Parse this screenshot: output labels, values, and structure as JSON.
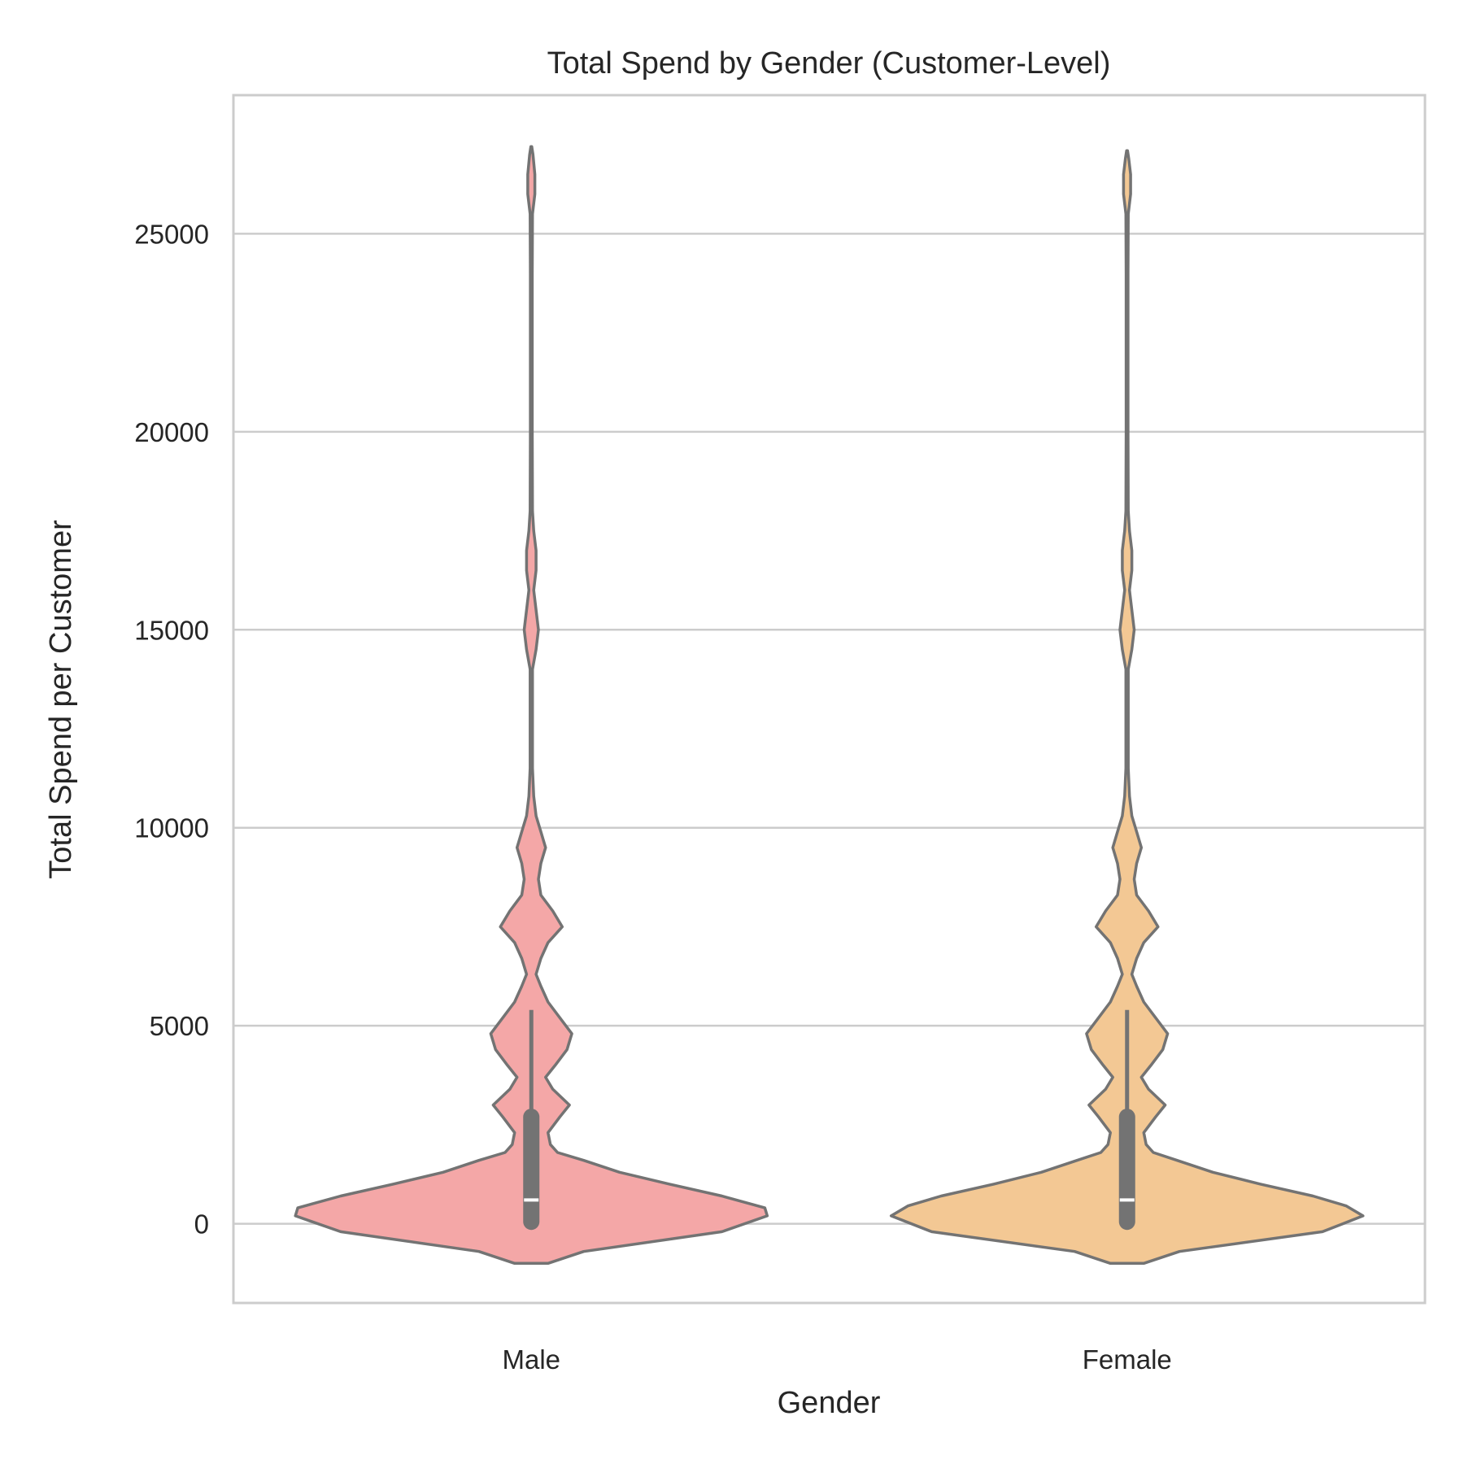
{
  "chart_data": {
    "type": "violin",
    "title": "Total Spend by Gender (Customer-Level)",
    "xlabel": "Gender",
    "ylabel": "Total Spend per Customer",
    "ylim": [
      -2000,
      28500
    ],
    "yticks": [
      0,
      5000,
      10000,
      15000,
      20000,
      25000
    ],
    "grid": true,
    "categories": [
      "Male",
      "Female"
    ],
    "series": [
      {
        "category": "Male",
        "color": "#f4a7a7",
        "edge_color": "#737373",
        "box": {
          "q1": 50,
          "median": 600,
          "q3": 2700,
          "whisker_low": 50,
          "whisker_high": 5400
        },
        "density": [
          [
            -1000,
            0.07
          ],
          [
            -700,
            0.22
          ],
          [
            -200,
            0.8
          ],
          [
            200,
            0.99
          ],
          [
            400,
            0.98
          ],
          [
            700,
            0.8
          ],
          [
            1000,
            0.58
          ],
          [
            1300,
            0.37
          ],
          [
            1600,
            0.22
          ],
          [
            1800,
            0.11
          ],
          [
            2000,
            0.08
          ],
          [
            2300,
            0.07
          ],
          [
            2700,
            0.12
          ],
          [
            3000,
            0.16
          ],
          [
            3400,
            0.09
          ],
          [
            3700,
            0.06
          ],
          [
            4000,
            0.1
          ],
          [
            4400,
            0.15
          ],
          [
            4800,
            0.17
          ],
          [
            5200,
            0.12
          ],
          [
            5600,
            0.07
          ],
          [
            6000,
            0.04
          ],
          [
            6300,
            0.02
          ],
          [
            6700,
            0.04
          ],
          [
            7100,
            0.07
          ],
          [
            7500,
            0.13
          ],
          [
            7900,
            0.09
          ],
          [
            8300,
            0.04
          ],
          [
            8700,
            0.03
          ],
          [
            9100,
            0.04
          ],
          [
            9500,
            0.06
          ],
          [
            9900,
            0.04
          ],
          [
            10300,
            0.02
          ],
          [
            10800,
            0.01
          ],
          [
            11500,
            0.005
          ],
          [
            13000,
            0.005
          ],
          [
            14000,
            0.005
          ],
          [
            14500,
            0.02
          ],
          [
            15000,
            0.03
          ],
          [
            15500,
            0.02
          ],
          [
            16000,
            0.01
          ],
          [
            16500,
            0.02
          ],
          [
            17000,
            0.02
          ],
          [
            17500,
            0.01
          ],
          [
            18000,
            0.005
          ],
          [
            20000,
            0.004
          ],
          [
            24000,
            0.004
          ],
          [
            25500,
            0.005
          ],
          [
            26000,
            0.015
          ],
          [
            26500,
            0.015
          ],
          [
            27000,
            0.007
          ],
          [
            27200,
            0.002
          ]
        ]
      },
      {
        "category": "Female",
        "color": "#f3c894",
        "edge_color": "#737373",
        "box": {
          "q1": 50,
          "median": 600,
          "q3": 2700,
          "whisker_low": 50,
          "whisker_high": 5400
        },
        "density": [
          [
            -1000,
            0.07
          ],
          [
            -700,
            0.22
          ],
          [
            -200,
            0.82
          ],
          [
            200,
            0.99
          ],
          [
            450,
            0.92
          ],
          [
            700,
            0.78
          ],
          [
            1000,
            0.56
          ],
          [
            1300,
            0.36
          ],
          [
            1600,
            0.21
          ],
          [
            1800,
            0.11
          ],
          [
            2000,
            0.08
          ],
          [
            2300,
            0.07
          ],
          [
            2700,
            0.12
          ],
          [
            3000,
            0.16
          ],
          [
            3400,
            0.09
          ],
          [
            3700,
            0.06
          ],
          [
            4000,
            0.1
          ],
          [
            4400,
            0.15
          ],
          [
            4800,
            0.17
          ],
          [
            5200,
            0.12
          ],
          [
            5600,
            0.07
          ],
          [
            6000,
            0.04
          ],
          [
            6300,
            0.02
          ],
          [
            6700,
            0.04
          ],
          [
            7100,
            0.07
          ],
          [
            7500,
            0.13
          ],
          [
            7900,
            0.09
          ],
          [
            8300,
            0.04
          ],
          [
            8700,
            0.03
          ],
          [
            9100,
            0.04
          ],
          [
            9500,
            0.06
          ],
          [
            9900,
            0.04
          ],
          [
            10300,
            0.02
          ],
          [
            10800,
            0.01
          ],
          [
            11500,
            0.005
          ],
          [
            13000,
            0.005
          ],
          [
            14000,
            0.005
          ],
          [
            14500,
            0.02
          ],
          [
            15000,
            0.03
          ],
          [
            15500,
            0.02
          ],
          [
            16000,
            0.01
          ],
          [
            16500,
            0.02
          ],
          [
            17000,
            0.02
          ],
          [
            17500,
            0.01
          ],
          [
            18000,
            0.005
          ],
          [
            20000,
            0.004
          ],
          [
            24000,
            0.004
          ],
          [
            25500,
            0.005
          ],
          [
            26000,
            0.015
          ],
          [
            26500,
            0.015
          ],
          [
            26900,
            0.007
          ],
          [
            27100,
            0.002
          ]
        ]
      }
    ]
  }
}
